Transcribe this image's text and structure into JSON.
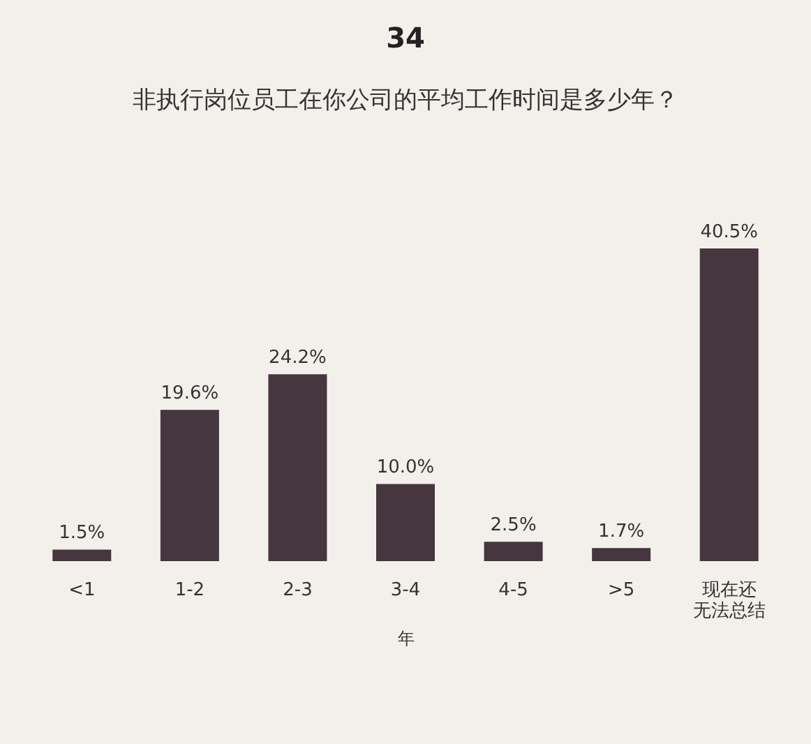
{
  "chart_data": {
    "type": "bar",
    "title": "34",
    "subtitle": "非执行岗位员工在你公司的平均工作时间是多少年？",
    "xlabel": "年",
    "categories": [
      "<1",
      "1-2",
      "2-3",
      "3-4",
      "4-5",
      ">5",
      "现在还无法总结"
    ],
    "values": [
      1.5,
      19.6,
      24.2,
      10.0,
      2.5,
      1.7,
      40.5
    ],
    "value_labels": [
      "1.5%",
      "19.6%",
      "24.2%",
      "10.0%",
      "2.5%",
      "1.7%",
      "40.5%"
    ],
    "color": "#45363f",
    "grid": false
  }
}
